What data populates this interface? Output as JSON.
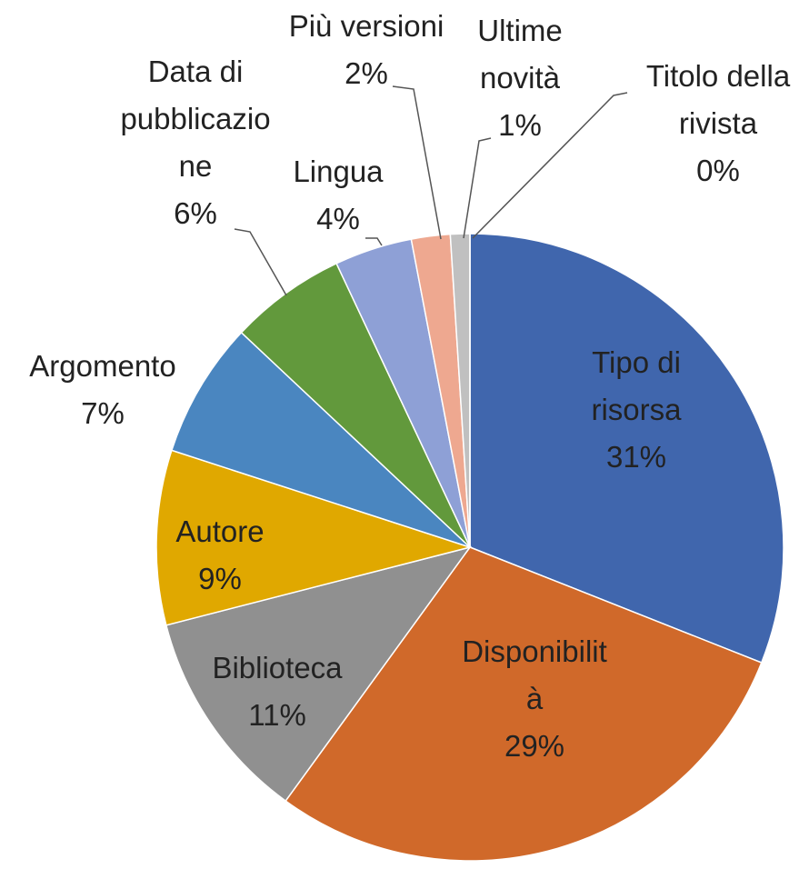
{
  "chart_data": {
    "type": "pie",
    "categories": [
      "Tipo di risorsa",
      "Disponibilità",
      "Biblioteca",
      "Autore",
      "Argomento",
      "Data di pubblicazione",
      "Lingua",
      "Più versioni",
      "Ultime novità",
      "Titolo della rivista"
    ],
    "values": [
      31,
      29,
      11,
      9,
      7,
      6,
      4,
      2,
      1,
      0
    ],
    "value_labels": [
      "31%",
      "29%",
      "11%",
      "9%",
      "7%",
      "6%",
      "4%",
      "2%",
      "1%",
      "0%"
    ],
    "colors": [
      "#4066ad",
      "#d0692a",
      "#909090",
      "#e0a800",
      "#4a86c0",
      "#62993c",
      "#8ea0d6",
      "#eea890",
      "#c0c0c0",
      "#e6d08a"
    ]
  }
}
